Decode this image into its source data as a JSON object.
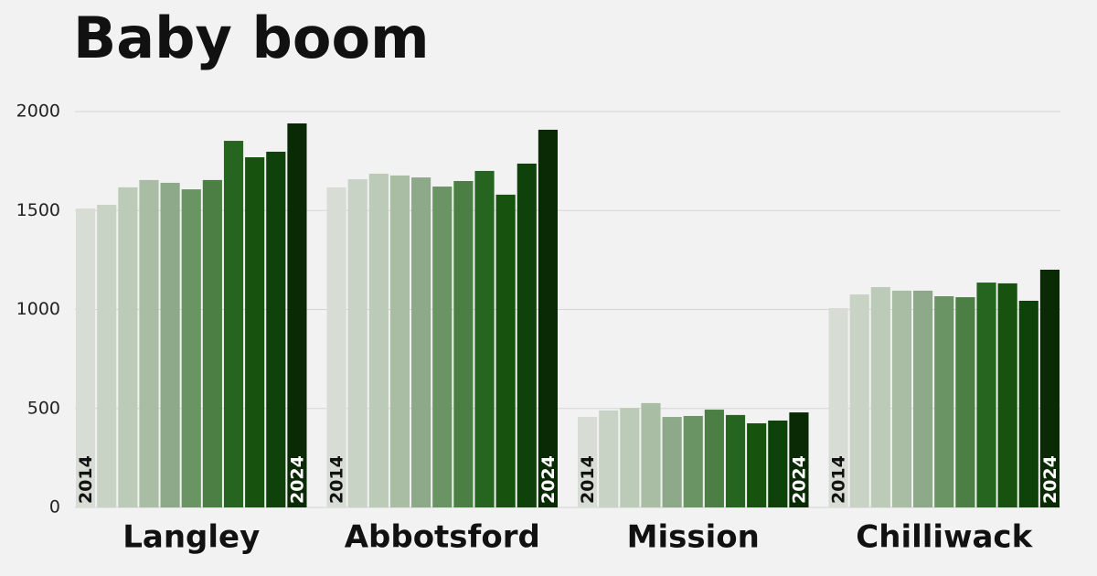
{
  "chart_data": {
    "type": "bar",
    "title": "Baby  boom",
    "categories": [
      "Langley",
      "Abbotsford",
      "Mission",
      "Chilliwack"
    ],
    "series": [
      {
        "name": "2014",
        "color": "#d7dcd4",
        "values": [
          1510,
          1617,
          457,
          1007
        ]
      },
      {
        "color": "#c8d3c6",
        "values": [
          1529,
          1658,
          490,
          1076
        ]
      },
      {
        "color": "#bccbb8",
        "values": [
          1617,
          1686,
          503,
          1113
        ]
      },
      {
        "color": "#a8bda4",
        "values": [
          1654,
          1677,
          527,
          1095
        ]
      },
      {
        "color": "#8ea88a",
        "values": [
          1640,
          1667,
          457,
          1095
        ]
      },
      {
        "color": "#6b9464",
        "values": [
          1607,
          1621,
          462,
          1067
        ]
      },
      {
        "color": "#4c7f44",
        "values": [
          1654,
          1649,
          494,
          1062
        ]
      },
      {
        "color": "#256520",
        "values": [
          1852,
          1700,
          467,
          1136
        ]
      },
      {
        "color": "#17520f",
        "values": [
          1769,
          1580,
          425,
          1132
        ]
      },
      {
        "color": "#0f420a",
        "values": [
          1797,
          1737,
          439,
          1044
        ]
      },
      {
        "name": "2024",
        "color": "#0a2a05",
        "values": [
          1940,
          1908,
          480,
          1201
        ]
      }
    ],
    "ylim": [
      0,
      2000
    ],
    "yticks": [
      0,
      500,
      1000,
      1500,
      2000
    ],
    "grid": true
  }
}
